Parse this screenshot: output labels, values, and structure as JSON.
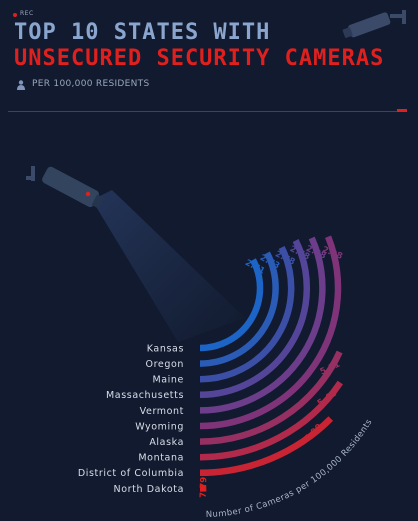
{
  "header": {
    "rec_label": "REC",
    "title_line1": "TOP 10 STATES WITH",
    "title_line2": "UNSECURED SECURITY CAMERAS",
    "subtitle": "PER 100,000 RESIDENTS"
  },
  "chart_data": {
    "type": "radial-bar",
    "title": "TOP 10 STATES WITH UNSECURED SECURITY CAMERAS",
    "subtitle": "PER 100,000 RESIDENTS",
    "axis_label": "Number of Cameras per 100,000 Residents",
    "categories": [
      "Kansas",
      "Oregon",
      "Maine",
      "Massachusetts",
      "Vermont",
      "Wyoming",
      "Alaska",
      "Montana",
      "District of Columbia",
      "North Dakota"
    ],
    "values": [
      2.71,
      2.73,
      2.78,
      2.78,
      2.88,
      2.98,
      5.01,
      5.42,
      5.9,
      7.79
    ],
    "value_labels": [
      "2.71",
      "2.73",
      "2.78",
      "2.78",
      "2.88",
      "2.98",
      "5.01",
      "5.42",
      "5.90",
      "7.79"
    ],
    "colors": [
      "#1c65c7",
      "#2a5cb7",
      "#3c4fa6",
      "#554598",
      "#6b3d8a",
      "#7f3479",
      "#963062",
      "#b12a4b",
      "#c82433",
      "#e0201e"
    ]
  }
}
